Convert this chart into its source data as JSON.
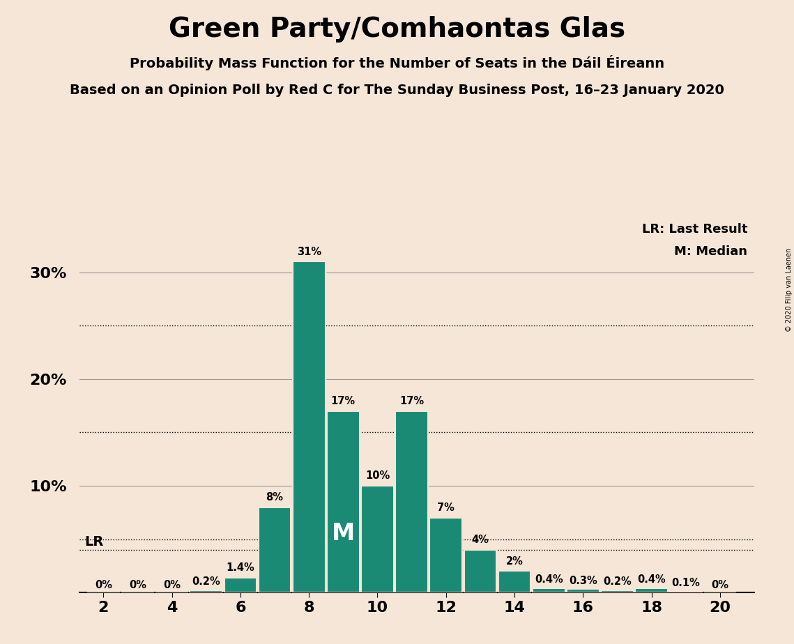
{
  "title": "Green Party/Comhaontas Glas",
  "subtitle1": "Probability Mass Function for the Number of Seats in the Dáil Éireann",
  "subtitle2": "Based on an Opinion Poll by Red C for The Sunday Business Post, 16–23 January 2020",
  "seats": [
    2,
    3,
    4,
    5,
    6,
    7,
    8,
    9,
    10,
    11,
    12,
    13,
    14,
    15,
    16,
    17,
    18,
    19,
    20
  ],
  "probabilities": [
    0.0,
    0.0,
    0.0,
    0.2,
    1.4,
    8.0,
    31.0,
    17.0,
    10.0,
    17.0,
    7.0,
    4.0,
    2.0,
    0.4,
    0.3,
    0.2,
    0.4,
    0.1,
    0.0
  ],
  "bar_color": "#1a8a74",
  "bar_edge_color": "#f5e6d8",
  "background_color": "#f5e6d8",
  "lr_value": 2,
  "lr_y_value": 4.0,
  "median_value": 9,
  "ylim": [
    0,
    35
  ],
  "dotted_gridlines": [
    5.0,
    15.0,
    25.0
  ],
  "solid_gridlines_color": "#999999",
  "solid_gridlines": [
    10.0,
    20.0,
    30.0
  ],
  "bar_labels": [
    "0%",
    "0%",
    "0%",
    "0.2%",
    "1.4%",
    "8%",
    "31%",
    "17%",
    "10%",
    "17%",
    "7%",
    "4%",
    "2%",
    "0.4%",
    "0.3%",
    "0.2%",
    "0.4%",
    "0.1%",
    "0%"
  ],
  "copyright_text": "© 2020 Filip van Laenen",
  "lr_label": "LR: Last Result",
  "median_label": "M: Median",
  "lr_text": "LR",
  "median_text": "M",
  "xticks": [
    2,
    4,
    6,
    8,
    10,
    12,
    14,
    16,
    18,
    20
  ],
  "ytick_labels": [
    "10%",
    "20%",
    "30%"
  ],
  "ytick_vals": [
    10,
    20,
    30
  ]
}
